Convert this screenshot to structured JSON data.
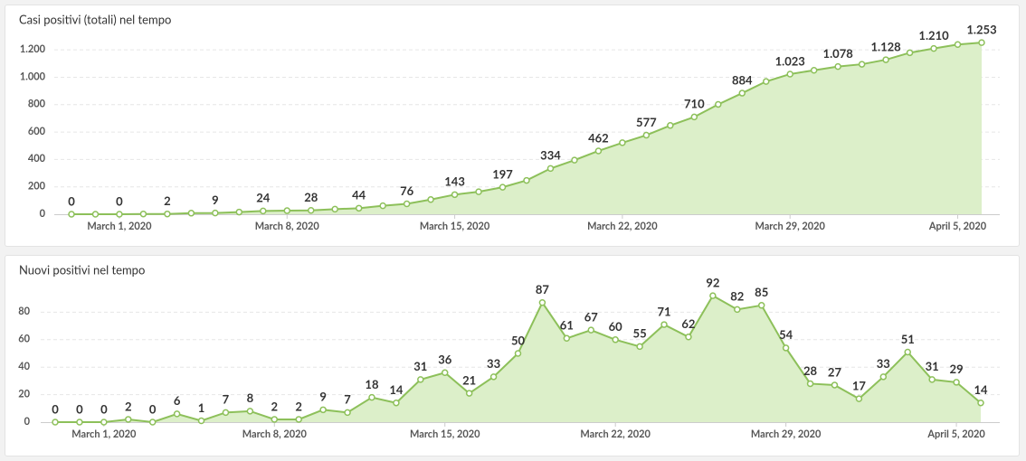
{
  "chart_data": [
    {
      "type": "area",
      "title": "Casi positivi (totali) nel tempo",
      "x": [
        "2020-02-28",
        "2020-02-29",
        "2020-03-01",
        "2020-03-02",
        "2020-03-03",
        "2020-03-04",
        "2020-03-05",
        "2020-03-06",
        "2020-03-07",
        "2020-03-08",
        "2020-03-09",
        "2020-03-10",
        "2020-03-11",
        "2020-03-12",
        "2020-03-13",
        "2020-03-14",
        "2020-03-15",
        "2020-03-16",
        "2020-03-17",
        "2020-03-18",
        "2020-03-19",
        "2020-03-20",
        "2020-03-21",
        "2020-03-22",
        "2020-03-23",
        "2020-03-24",
        "2020-03-25",
        "2020-03-26",
        "2020-03-27",
        "2020-03-28",
        "2020-03-29",
        "2020-03-30",
        "2020-03-31",
        "2020-04-01",
        "2020-04-02",
        "2020-04-03",
        "2020-04-04",
        "2020-04-05",
        "2020-04-06"
      ],
      "series": [
        {
          "name": "Casi positivi",
          "color": "#8dc05a",
          "fill": "#dcefc9",
          "values": [
            0,
            0,
            0,
            2,
            2,
            8,
            9,
            16,
            24,
            26,
            28,
            37,
            44,
            62,
            76,
            107,
            143,
            164,
            197,
            247,
            334,
            395,
            462,
            522,
            577,
            648,
            710,
            802,
            884,
            969,
            1023,
            1051,
            1078,
            1095,
            1128,
            1179,
            1210,
            1239,
            1253
          ],
          "value_labels": [
            "0",
            null,
            "0",
            null,
            "2",
            null,
            "9",
            null,
            "24",
            null,
            "28",
            null,
            "44",
            null,
            "76",
            null,
            "143",
            null,
            "197",
            null,
            "334",
            null,
            "462",
            null,
            "577",
            null,
            "710",
            null,
            "884",
            null,
            "1.023",
            null,
            "1.078",
            null,
            "1.128",
            null,
            "1.210",
            null,
            "1.253"
          ]
        }
      ],
      "ylim": [
        0,
        1300
      ],
      "yticks": [
        0,
        200,
        400,
        600,
        800,
        {
          "value": 1000,
          "label": "1.000"
        },
        {
          "value": 1200,
          "label": "1.200"
        }
      ],
      "xticks": [
        {
          "value": "2020-03-01",
          "label": "March 1, 2020"
        },
        {
          "value": "2020-03-08",
          "label": "March 8, 2020"
        },
        {
          "value": "2020-03-15",
          "label": "March 15, 2020"
        },
        {
          "value": "2020-03-22",
          "label": "March 22, 2020"
        },
        {
          "value": "2020-03-29",
          "label": "March 29, 2020"
        },
        {
          "value": "2020-04-05",
          "label": "April 5, 2020"
        }
      ],
      "grid": true
    },
    {
      "type": "area",
      "title": "Nuovi positivi nel tempo",
      "x": [
        "2020-02-28",
        "2020-02-29",
        "2020-03-01",
        "2020-03-02",
        "2020-03-03",
        "2020-03-04",
        "2020-03-05",
        "2020-03-06",
        "2020-03-07",
        "2020-03-08",
        "2020-03-09",
        "2020-03-10",
        "2020-03-11",
        "2020-03-12",
        "2020-03-13",
        "2020-03-14",
        "2020-03-15",
        "2020-03-16",
        "2020-03-17",
        "2020-03-18",
        "2020-03-19",
        "2020-03-20",
        "2020-03-21",
        "2020-03-22",
        "2020-03-23",
        "2020-03-24",
        "2020-03-25",
        "2020-03-26",
        "2020-03-27",
        "2020-03-28",
        "2020-03-29",
        "2020-03-30",
        "2020-03-31",
        "2020-04-01",
        "2020-04-02",
        "2020-04-03",
        "2020-04-04",
        "2020-04-05",
        "2020-04-06"
      ],
      "series": [
        {
          "name": "Nuovi positivi",
          "color": "#8dc05a",
          "fill": "#dcefc9",
          "values": [
            0,
            0,
            0,
            2,
            0,
            6,
            1,
            7,
            8,
            2,
            2,
            9,
            7,
            18,
            14,
            31,
            36,
            21,
            33,
            50,
            87,
            61,
            67,
            60,
            55,
            71,
            62,
            92,
            82,
            85,
            54,
            28,
            27,
            17,
            33,
            51,
            31,
            29,
            14
          ]
        }
      ],
      "ylim": [
        0,
        100
      ],
      "yticks": [
        0,
        20,
        40,
        60,
        80
      ],
      "xticks": [
        {
          "value": "2020-03-01",
          "label": "March 1, 2020"
        },
        {
          "value": "2020-03-08",
          "label": "March 8, 2020"
        },
        {
          "value": "2020-03-15",
          "label": "March 15, 2020"
        },
        {
          "value": "2020-03-22",
          "label": "March 22, 2020"
        },
        {
          "value": "2020-03-29",
          "label": "March 29, 2020"
        },
        {
          "value": "2020-04-05",
          "label": "April 5, 2020"
        }
      ],
      "grid": true
    }
  ]
}
